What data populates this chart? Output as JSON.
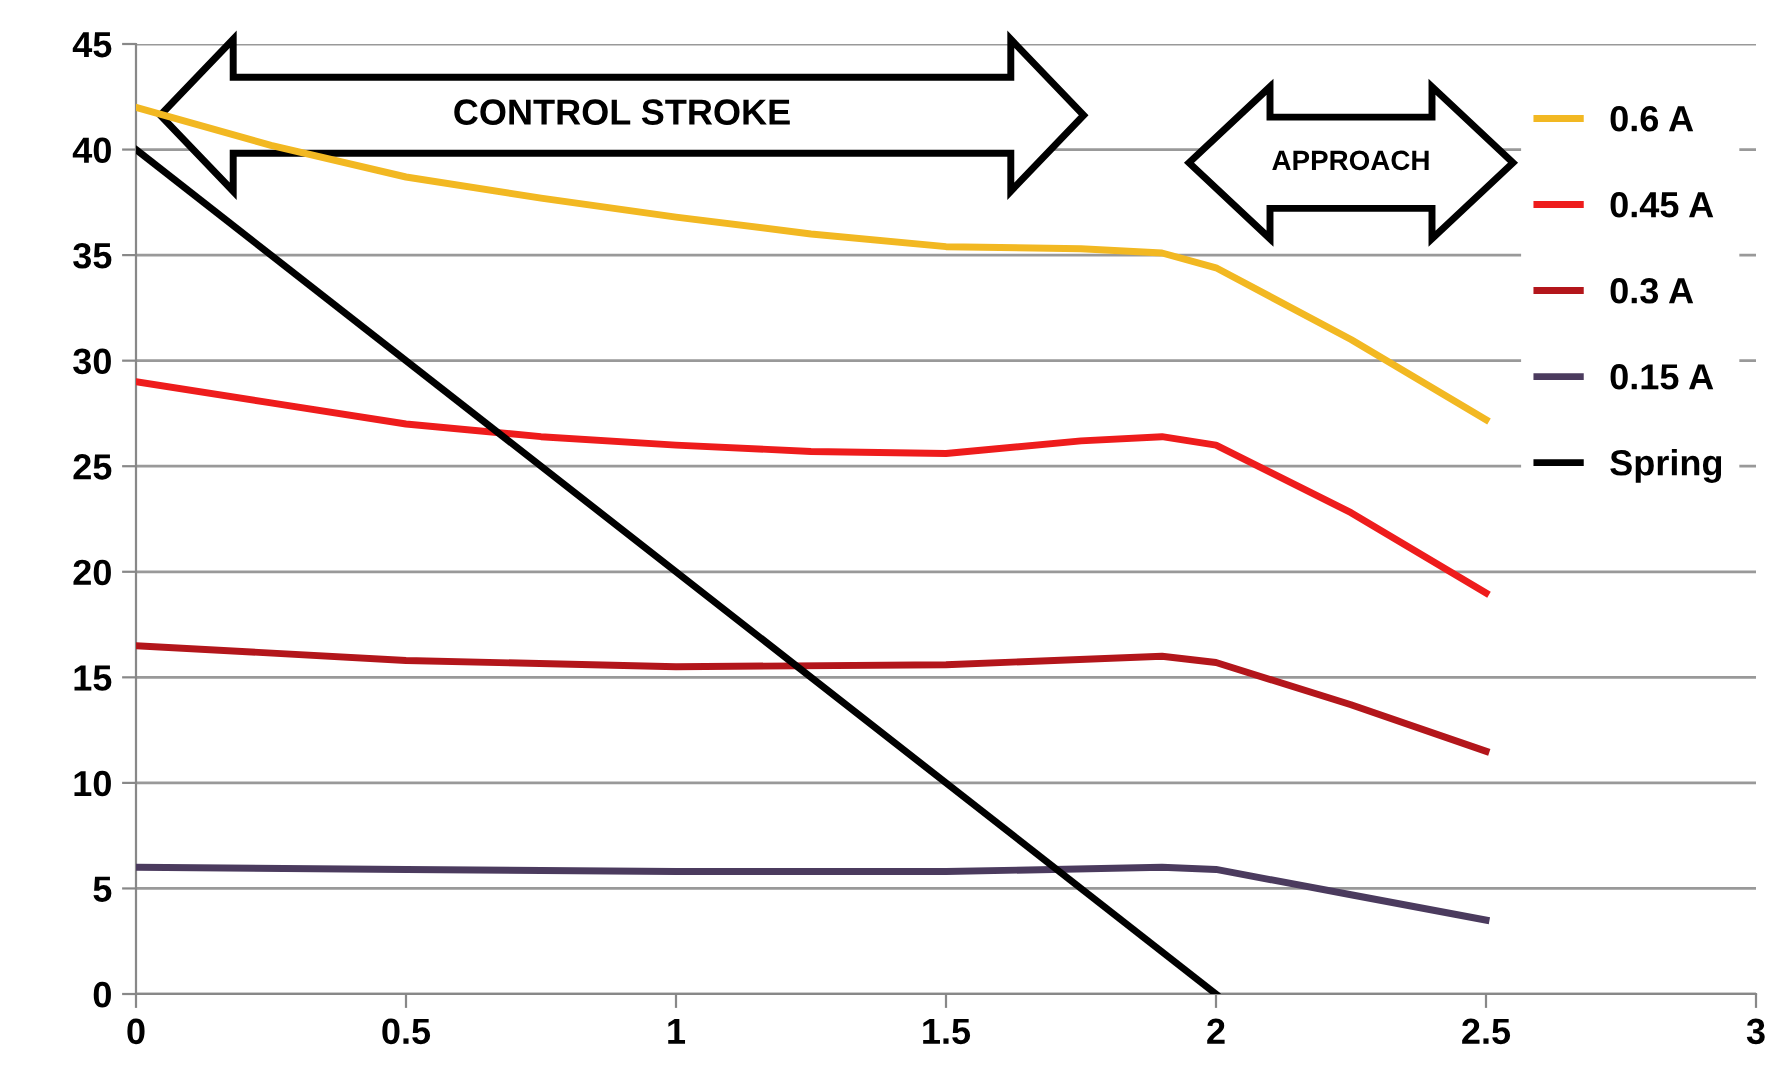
{
  "chart_data": {
    "type": "line",
    "xlim": [
      0,
      3
    ],
    "xticks": [
      0,
      0.5,
      1,
      1.5,
      2,
      2.5,
      3
    ],
    "ylim": [
      0,
      45
    ],
    "yticks": [
      0,
      5,
      10,
      15,
      20,
      25,
      30,
      35,
      40,
      45
    ],
    "grid": "y",
    "legend": "top right",
    "marker": "none",
    "line_style": "solid",
    "annotations": [
      "CONTROL STROKE",
      "APPROACH"
    ],
    "series": [
      {
        "name": "0.6 A",
        "color": "#f2b822",
        "x": [
          0,
          0.25,
          0.5,
          0.75,
          1,
          1.25,
          1.5,
          1.75,
          1.9,
          2,
          2.25,
          2.5
        ],
        "values": [
          42,
          40.2,
          38.7,
          37.7,
          36.8,
          36,
          35.4,
          35.3,
          35.1,
          34.4,
          31,
          27.2
        ]
      },
      {
        "name": "0.45 A",
        "color": "#ee1c1c",
        "x": [
          0,
          0.25,
          0.5,
          0.75,
          1,
          1.25,
          1.5,
          1.75,
          1.9,
          2,
          2.25,
          2.5
        ],
        "values": [
          29,
          28,
          27,
          26.4,
          26,
          25.7,
          25.6,
          26.2,
          26.4,
          26,
          22.8,
          19
        ]
      },
      {
        "name": "0.3 A",
        "color": "#b3161b",
        "x": [
          0,
          0.5,
          1,
          1.5,
          1.9,
          2,
          2.25,
          2.5
        ],
        "values": [
          16.5,
          15.8,
          15.5,
          15.6,
          16,
          15.7,
          13.7,
          11.5
        ]
      },
      {
        "name": "0.15 A",
        "color": "#4b3b5e",
        "x": [
          0,
          0.5,
          1,
          1.5,
          1.9,
          2,
          2.25,
          2.5
        ],
        "values": [
          6,
          5.9,
          5.8,
          5.8,
          6,
          5.9,
          4.7,
          3.5
        ]
      },
      {
        "name": "Spring",
        "color": "#000000",
        "x": [
          0,
          2
        ],
        "values": [
          40,
          0
        ]
      }
    ]
  }
}
